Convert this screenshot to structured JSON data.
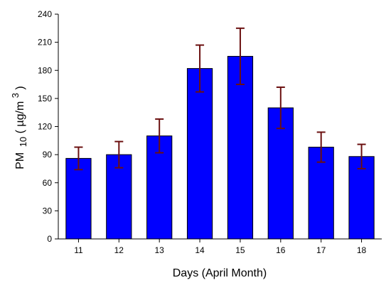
{
  "chart_data": {
    "type": "bar",
    "title": "",
    "categories": [
      "11",
      "12",
      "13",
      "14",
      "15",
      "16",
      "17",
      "18"
    ],
    "values": [
      86,
      90,
      110,
      182,
      195,
      140,
      98,
      88
    ],
    "error_low": [
      74,
      76,
      92,
      157,
      165,
      118,
      82,
      75
    ],
    "error_high": [
      98,
      104,
      128,
      207,
      225,
      162,
      114,
      101
    ],
    "xlabel": "Days (April Month)",
    "ylabel": {
      "main": "PM",
      "sub": "10",
      "unit_open": "(",
      "unit": "µg/m",
      "unit_sup": "3",
      "unit_close": ")"
    },
    "ylim": [
      0,
      240
    ],
    "yticks": [
      "0",
      "30",
      "60",
      "90",
      "120",
      "150",
      "180",
      "210",
      "240"
    ],
    "grid": false,
    "legend": "none",
    "colors": {
      "bar_fill": "#0000ff",
      "bar_stroke": "#000000",
      "error_bar": "#6b1010"
    }
  }
}
